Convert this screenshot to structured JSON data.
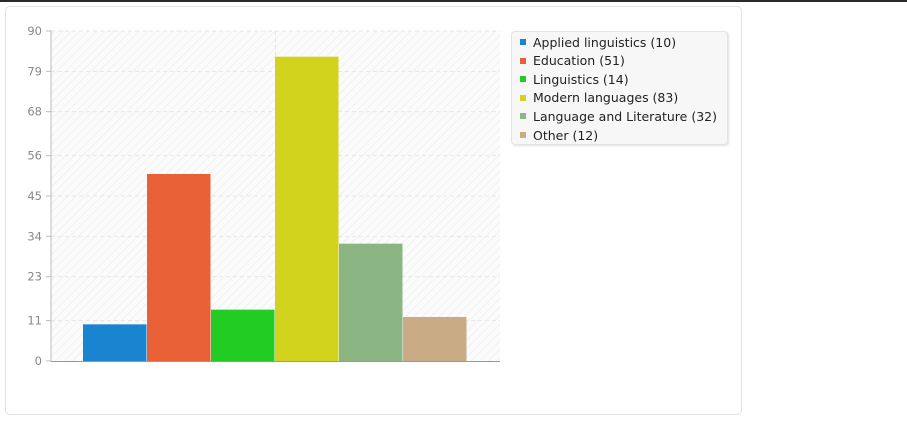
{
  "chart_data": {
    "type": "bar",
    "categories": [
      "Applied linguistics",
      "Education",
      "Linguistics",
      "Modern languages",
      "Language and Literature",
      "Other"
    ],
    "values": [
      10,
      51,
      14,
      83,
      32,
      12
    ],
    "colors": [
      "#1b84d0",
      "#e86035",
      "#22cc22",
      "#d2d31c",
      "#8cb584",
      "#c9ab86"
    ],
    "legend_labels": [
      "Applied linguistics (10)",
      "Education (51)",
      "Linguistics (14)",
      "Modern languages (83)",
      "Language and Literature (32)",
      "Other (12)"
    ],
    "yticks": [
      "0",
      "11",
      "23",
      "34",
      "45",
      "56",
      "68",
      "79",
      "90"
    ],
    "ylim": [
      0,
      90
    ],
    "grid": true,
    "legend_position": "right"
  }
}
